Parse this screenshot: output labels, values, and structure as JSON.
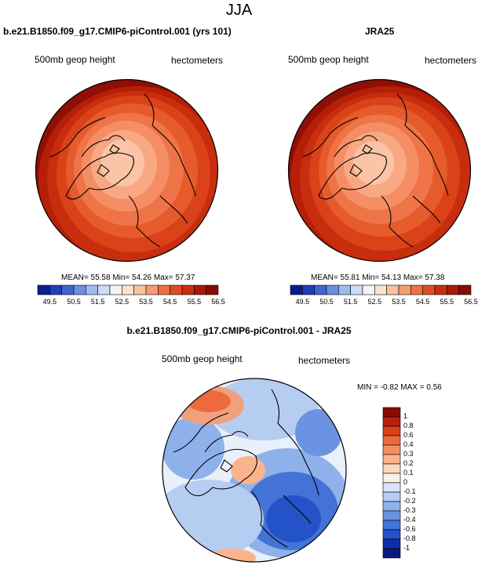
{
  "figure": {
    "title": "JJA",
    "left_panel": {
      "title": "b.e21.B1850.f09_g17.CMIP6-piControl.001 (yrs 101)",
      "variable": "500mb geop height",
      "units": "hectometers",
      "stats": "MEAN= 55.58  Min= 54.26  Max= 57.37"
    },
    "right_panel": {
      "title": "JRA25",
      "variable": "500mb geop height",
      "units": "hectometers",
      "stats": "MEAN= 55.81  Min= 54.13  Max= 57.38"
    },
    "diff_panel": {
      "title": "b.e21.B1850.f09_g17.CMIP6-piControl.001 - JRA25",
      "variable": "500mb geop height",
      "units": "hectometers",
      "stats": "MIN =  -0.82 MAX =   0.56"
    }
  },
  "colorbars": {
    "horizontal": {
      "ticks": [
        "49.5",
        "50.5",
        "51.5",
        "52.5",
        "53.5",
        "54.5",
        "55.5",
        "56.5"
      ],
      "colors": [
        "#0a1e8c",
        "#1f3fb8",
        "#3f64d4",
        "#6b8fe0",
        "#9fbaee",
        "#cddcf6",
        "#f4f4f4",
        "#fbe3cc",
        "#f9c3a1",
        "#f59c72",
        "#ee6f45",
        "#e14b22",
        "#c92d10",
        "#a81907",
        "#8a0b04"
      ]
    },
    "vertical": {
      "ticks": [
        "1",
        "0.8",
        "0.6",
        "0.4",
        "0.3",
        "0.2",
        "0.1",
        "0",
        "-0.1",
        "-0.2",
        "-0.3",
        "-0.4",
        "-0.6",
        "-0.8",
        "-1"
      ],
      "colors": [
        "#8a0b04",
        "#b81e0a",
        "#d8401b",
        "#ec6a3e",
        "#f58e62",
        "#f9b48c",
        "#fcd8bd",
        "#faf0e6",
        "#d9e5f8",
        "#b6cdf2",
        "#8fb1ea",
        "#6a93e1",
        "#4373d7",
        "#2452c8",
        "#0d2fa8",
        "#081a7a"
      ]
    }
  },
  "map_colors": {
    "height_low": "#f6b48f",
    "height_mid": "#ec6d40",
    "height_high": "#c22a0c",
    "height_edge": "#8e0f05",
    "diff_neg": "#6f97e3",
    "diff_deep_neg": "#2d56c9",
    "diff_pos": "#f1a07e",
    "diff_zero": "#e8f0fb"
  }
}
